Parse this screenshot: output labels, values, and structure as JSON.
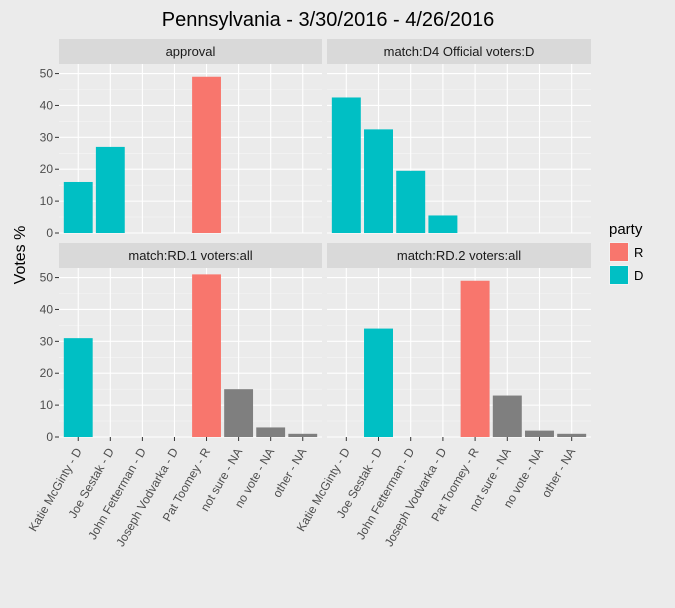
{
  "chart_data": {
    "type": "bar",
    "title": "Pennsylvania - 3/30/2016 - 4/26/2016",
    "xlabel": "",
    "ylabel": "Votes %",
    "ylim": [
      0,
      53
    ],
    "yticks": [
      0,
      10,
      20,
      30,
      40,
      50
    ],
    "grid": true,
    "legend": {
      "title": "party",
      "position": "right",
      "entries": [
        {
          "label": "R",
          "color": "#f8766d"
        },
        {
          "label": "D",
          "color": "#00bfc4"
        }
      ]
    },
    "colors": {
      "R": "#f8766d",
      "D": "#00bfc4",
      "NA": "#7f7f7f"
    },
    "categories": [
      "Katie McGinty - D",
      "Joe Sestak - D",
      "John Fetterman - D",
      "Joseph Vodvarka - D",
      "Pat Toomey - R",
      "not sure - NA",
      "no vote - NA",
      "other - NA"
    ],
    "category_party": [
      "D",
      "D",
      "D",
      "D",
      "R",
      "NA",
      "NA",
      "NA"
    ],
    "panels": [
      {
        "strip": "approval",
        "values": [
          16,
          27,
          null,
          null,
          49,
          null,
          null,
          null
        ]
      },
      {
        "strip": "match:D4 Official     voters:D",
        "values": [
          42.5,
          32.5,
          19.5,
          5.5,
          null,
          null,
          null,
          null
        ]
      },
      {
        "strip": "match:RD.1     voters:all",
        "values": [
          31,
          null,
          null,
          null,
          51,
          15,
          3,
          1
        ]
      },
      {
        "strip": "match:RD.2     voters:all",
        "values": [
          null,
          34,
          null,
          null,
          49,
          13,
          2,
          1
        ]
      }
    ]
  }
}
